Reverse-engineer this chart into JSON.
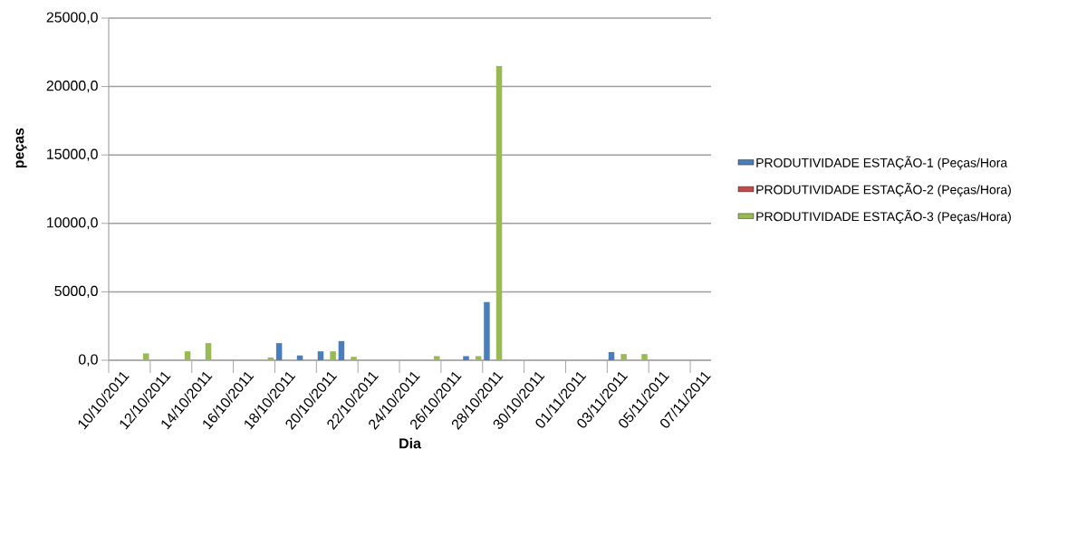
{
  "chart_data": {
    "type": "bar",
    "xlabel": "Dia",
    "ylabel": "peças",
    "categories": [
      "10/10/2011",
      null,
      "12/10/2011",
      null,
      "14/10/2011",
      null,
      "16/10/2011",
      null,
      "18/10/2011",
      null,
      "20/10/2011",
      null,
      "22/10/2011",
      null,
      "24/10/2011",
      null,
      "26/10/2011",
      null,
      "28/10/2011",
      null,
      "30/10/2011",
      null,
      "01/11/2011",
      null,
      "03/11/2011",
      null,
      "05/11/2011",
      null,
      "07/11/2011"
    ],
    "series": [
      {
        "name": "PRODUTIVIDADE ESTAÇÃO-1 (Peças/Hora",
        "color": "#4a7ebb",
        "values": [
          0,
          0,
          0,
          0,
          0,
          0,
          0,
          0,
          1250,
          350,
          650,
          1400,
          0,
          0,
          0,
          0,
          0,
          300,
          4250,
          0,
          0,
          0,
          0,
          0,
          600,
          0,
          0,
          0,
          0
        ]
      },
      {
        "name": "PRODUTIVIDADE ESTAÇÃO-2 (Peças/Hora)",
        "color": "#be4b48",
        "values": [
          0,
          0,
          0,
          0,
          0,
          0,
          0,
          0,
          0,
          0,
          0,
          0,
          0,
          0,
          0,
          0,
          0,
          0,
          0,
          0,
          0,
          0,
          0,
          0,
          0,
          0,
          0,
          0,
          0
        ]
      },
      {
        "name": "PRODUTIVIDADE ESTAÇÃO-3 (Peças/Hora)",
        "color": "#98b954",
        "values": [
          0,
          500,
          0,
          650,
          1250,
          0,
          0,
          200,
          0,
          0,
          650,
          250,
          0,
          0,
          0,
          300,
          0,
          300,
          21500,
          0,
          0,
          0,
          0,
          0,
          450,
          450,
          0,
          0,
          0
        ]
      }
    ],
    "ylim": [
      0,
      25000
    ],
    "yticks": [
      {
        "value": 0,
        "label": "0,0"
      },
      {
        "value": 5000,
        "label": "5000,0"
      },
      {
        "value": 10000,
        "label": "10000,0"
      },
      {
        "value": 15000,
        "label": "15000,0"
      },
      {
        "value": 20000,
        "label": "20000,0"
      },
      {
        "value": 25000,
        "label": "25000,0"
      }
    ],
    "grid": "y",
    "legend": "right"
  }
}
